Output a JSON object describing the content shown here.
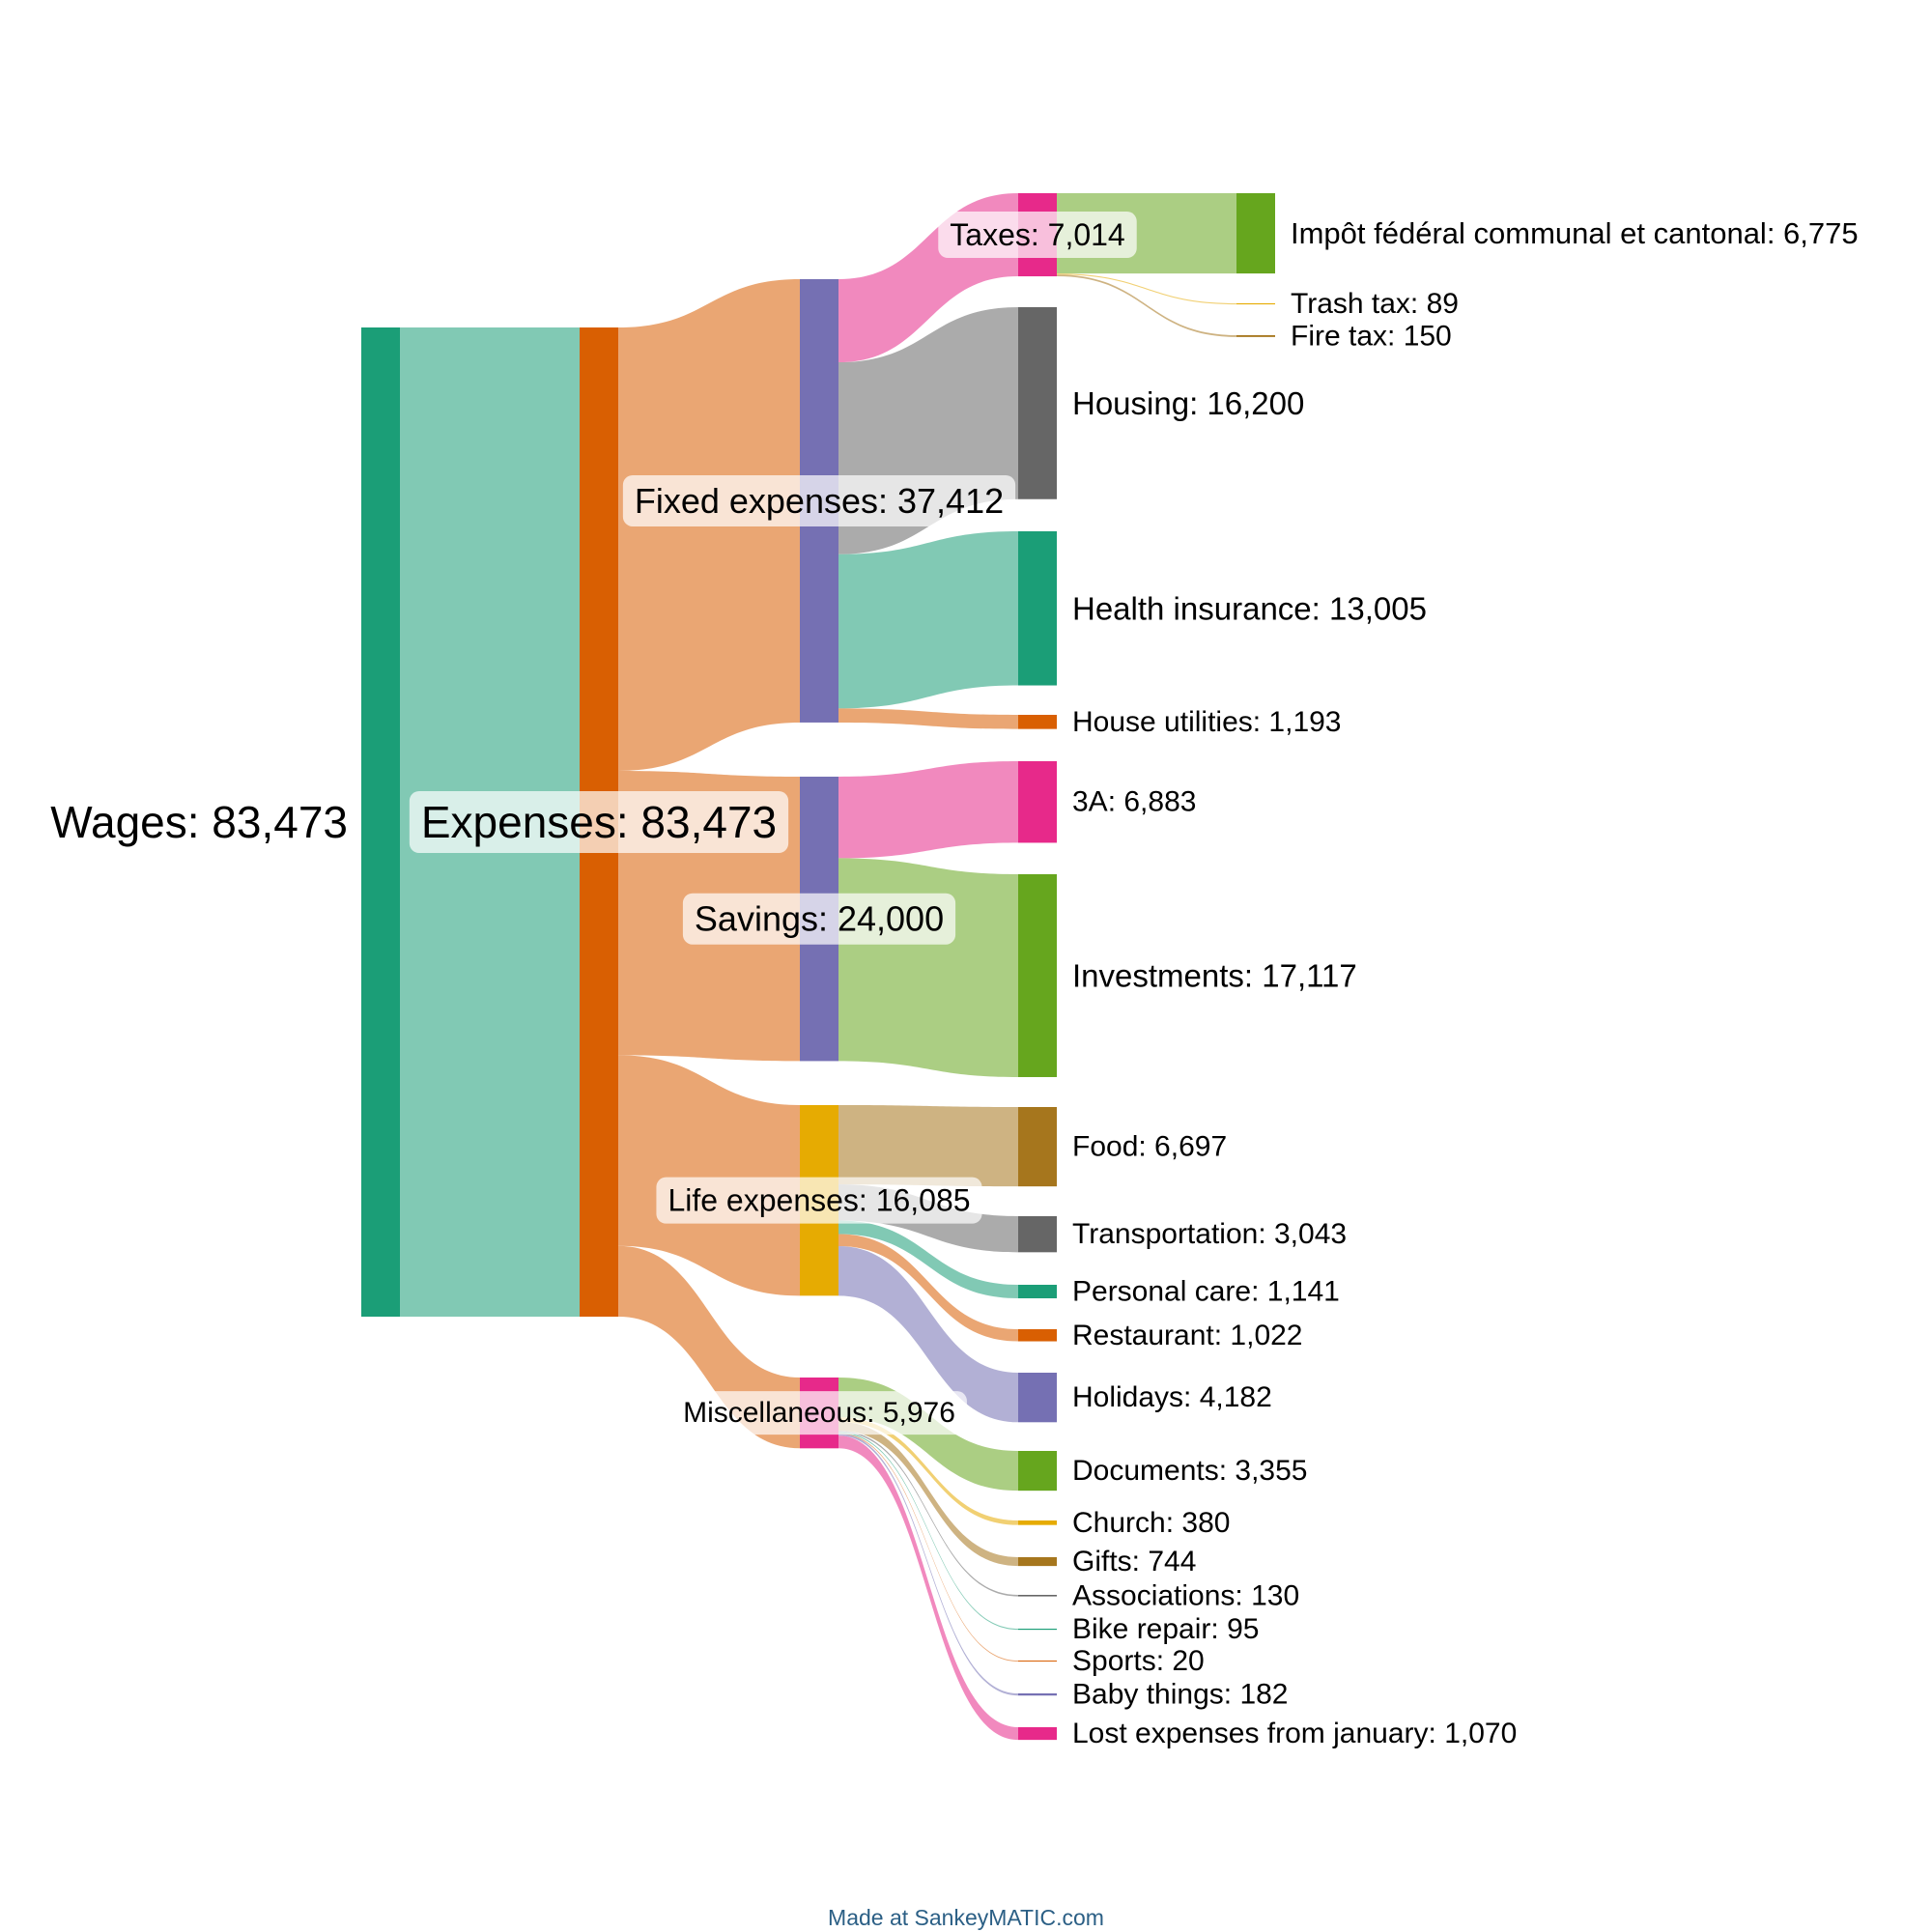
{
  "chart_data": {
    "type": "sankey",
    "unit_note": "values are amounts",
    "nodes": [
      {
        "id": "wages",
        "name": "Wages",
        "value": 83473,
        "color": "#1b9e77"
      },
      {
        "id": "expenses",
        "name": "Expenses",
        "value": 83473,
        "color": "#d95f02"
      },
      {
        "id": "fixed",
        "name": "Fixed expenses",
        "value": 37412,
        "color": "#7570b3"
      },
      {
        "id": "savings",
        "name": "Savings",
        "value": 24000,
        "color": "#7570b3"
      },
      {
        "id": "life",
        "name": "Life expenses",
        "value": 16085,
        "color": "#e6ab02"
      },
      {
        "id": "misc",
        "name": "Miscellaneous",
        "value": 5976,
        "color": "#e7298a"
      },
      {
        "id": "taxes",
        "name": "Taxes",
        "value": 7014,
        "color": "#e7298a"
      },
      {
        "id": "housing",
        "name": "Housing",
        "value": 16200,
        "color": "#666666"
      },
      {
        "id": "health",
        "name": "Health insurance",
        "value": 13005,
        "color": "#1b9e77"
      },
      {
        "id": "utilities",
        "name": "House utilities",
        "value": 1193,
        "color": "#d95f02"
      },
      {
        "id": "3a",
        "name": "3A",
        "value": 6883,
        "color": "#e7298a"
      },
      {
        "id": "investments",
        "name": "Investments",
        "value": 17117,
        "color": "#66a61e"
      },
      {
        "id": "food",
        "name": "Food",
        "value": 6697,
        "color": "#a6761d"
      },
      {
        "id": "transport",
        "name": "Transportation",
        "value": 3043,
        "color": "#666666"
      },
      {
        "id": "personal",
        "name": "Personal care",
        "value": 1141,
        "color": "#1b9e77"
      },
      {
        "id": "restaurant",
        "name": "Restaurant",
        "value": 1022,
        "color": "#d95f02"
      },
      {
        "id": "holidays",
        "name": "Holidays",
        "value": 4182,
        "color": "#7570b3"
      },
      {
        "id": "documents",
        "name": "Documents",
        "value": 3355,
        "color": "#66a61e"
      },
      {
        "id": "church",
        "name": "Church",
        "value": 380,
        "color": "#e6ab02"
      },
      {
        "id": "gifts",
        "name": "Gifts",
        "value": 744,
        "color": "#a6761d"
      },
      {
        "id": "associations",
        "name": "Associations",
        "value": 130,
        "color": "#666666"
      },
      {
        "id": "bike",
        "name": "Bike repair",
        "value": 95,
        "color": "#1b9e77"
      },
      {
        "id": "sports",
        "name": "Sports",
        "value": 20,
        "color": "#d95f02"
      },
      {
        "id": "baby",
        "name": "Baby things",
        "value": 182,
        "color": "#7570b3"
      },
      {
        "id": "lost",
        "name": "Lost expenses from january",
        "value": 1070,
        "color": "#e7298a"
      },
      {
        "id": "impot",
        "name": "Impôt fédéral communal et cantonal",
        "value": 6775,
        "color": "#66a61e"
      },
      {
        "id": "trash",
        "name": "Trash tax",
        "value": 89,
        "color": "#e6ab02"
      },
      {
        "id": "fire",
        "name": "Fire tax",
        "value": 150,
        "color": "#a6761d"
      }
    ],
    "links": [
      {
        "source": "wages",
        "target": "expenses",
        "value": 83473
      },
      {
        "source": "expenses",
        "target": "fixed",
        "value": 37412
      },
      {
        "source": "expenses",
        "target": "savings",
        "value": 24000
      },
      {
        "source": "expenses",
        "target": "life",
        "value": 16085
      },
      {
        "source": "expenses",
        "target": "misc",
        "value": 5976
      },
      {
        "source": "fixed",
        "target": "taxes",
        "value": 7014
      },
      {
        "source": "fixed",
        "target": "housing",
        "value": 16200
      },
      {
        "source": "fixed",
        "target": "health",
        "value": 13005
      },
      {
        "source": "fixed",
        "target": "utilities",
        "value": 1193
      },
      {
        "source": "savings",
        "target": "3a",
        "value": 6883
      },
      {
        "source": "savings",
        "target": "investments",
        "value": 17117
      },
      {
        "source": "life",
        "target": "food",
        "value": 6697
      },
      {
        "source": "life",
        "target": "transport",
        "value": 3043
      },
      {
        "source": "life",
        "target": "personal",
        "value": 1141
      },
      {
        "source": "life",
        "target": "restaurant",
        "value": 1022
      },
      {
        "source": "life",
        "target": "holidays",
        "value": 4182
      },
      {
        "source": "misc",
        "target": "documents",
        "value": 3355
      },
      {
        "source": "misc",
        "target": "church",
        "value": 380
      },
      {
        "source": "misc",
        "target": "gifts",
        "value": 744
      },
      {
        "source": "misc",
        "target": "associations",
        "value": 130
      },
      {
        "source": "misc",
        "target": "bike",
        "value": 95
      },
      {
        "source": "misc",
        "target": "sports",
        "value": 20
      },
      {
        "source": "misc",
        "target": "baby",
        "value": 182
      },
      {
        "source": "misc",
        "target": "lost",
        "value": 1070
      },
      {
        "source": "taxes",
        "target": "impot",
        "value": 6775
      },
      {
        "source": "taxes",
        "target": "trash",
        "value": 89
      },
      {
        "source": "taxes",
        "target": "fire",
        "value": 150
      }
    ]
  },
  "footer": {
    "credit": "Made at SankeyMATIC.com"
  }
}
